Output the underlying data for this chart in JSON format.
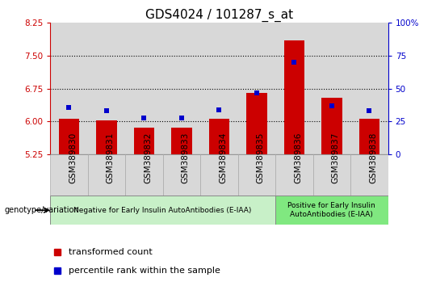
{
  "title": "GDS4024 / 101287_s_at",
  "samples": [
    "GSM389830",
    "GSM389831",
    "GSM389832",
    "GSM389833",
    "GSM389834",
    "GSM389835",
    "GSM389836",
    "GSM389837",
    "GSM389838"
  ],
  "transformed_count": [
    6.07,
    6.02,
    5.87,
    5.86,
    6.07,
    6.65,
    7.85,
    6.55,
    6.07
  ],
  "percentile_rank": [
    36,
    33,
    28,
    28,
    34,
    47,
    70,
    37,
    33
  ],
  "left_ylim": [
    5.25,
    8.25
  ],
  "left_yticks": [
    5.25,
    6.0,
    6.75,
    7.5,
    8.25
  ],
  "right_ylim": [
    0,
    100
  ],
  "right_yticks": [
    0,
    25,
    50,
    75,
    100
  ],
  "bar_color": "#cc0000",
  "dot_color": "#0000cc",
  "group1_label": "Negative for Early Insulin AutoAntibodies (E-IAA)",
  "group2_label": "Positive for Early Insulin\nAutoAntibodies (E-IAA)",
  "group1_indices": [
    0,
    1,
    2,
    3,
    4,
    5
  ],
  "group2_indices": [
    6,
    7,
    8
  ],
  "group1_color": "#c8f0c8",
  "group2_color": "#80e880",
  "col_bg_color": "#d8d8d8",
  "left_axis_color": "#cc0000",
  "right_axis_color": "#0000cc",
  "title_fontsize": 11,
  "tick_fontsize": 7.5,
  "legend_fontsize": 8,
  "bar_width": 0.55
}
